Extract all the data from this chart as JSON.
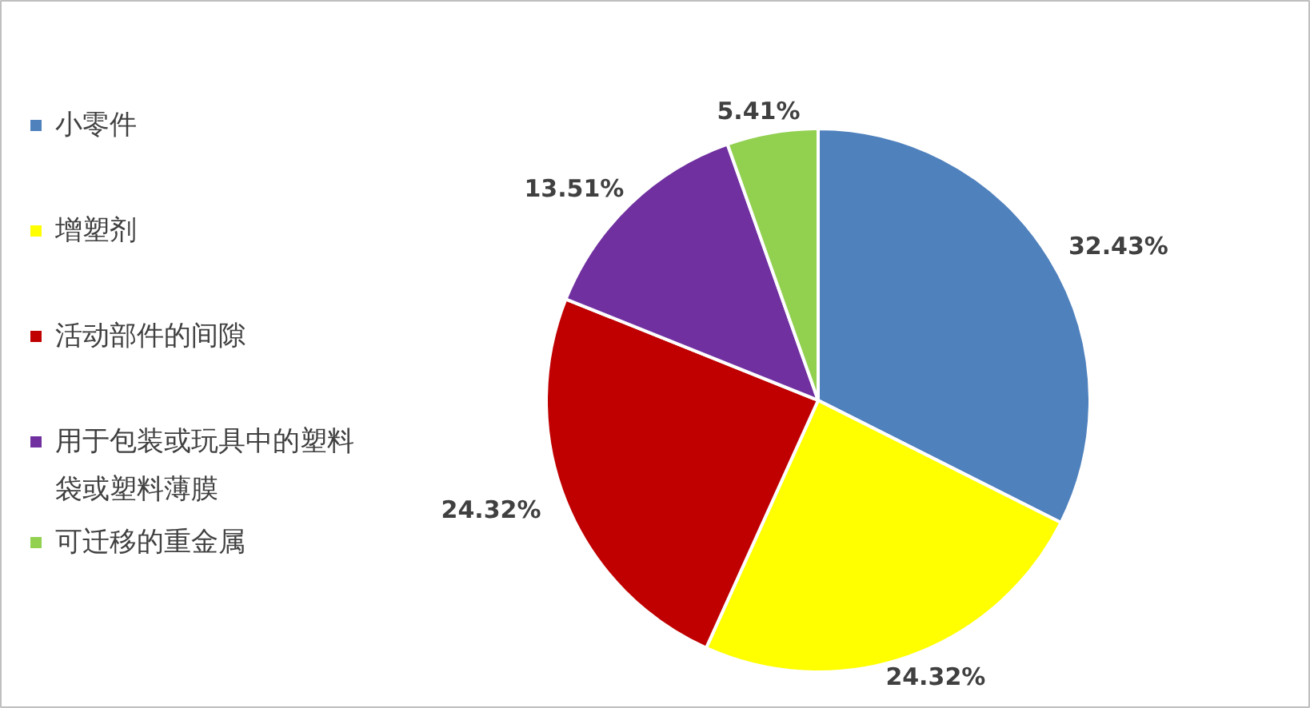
{
  "chart_data": {
    "type": "pie",
    "categories": [
      "小零件",
      "增塑剂",
      "活动部件的间隙",
      "用于包装或玩具中的塑料袋或塑料薄膜",
      "可迁移的重金属"
    ],
    "values": [
      32.43,
      24.32,
      24.32,
      13.51,
      5.41
    ],
    "colors": [
      "#4f81bd",
      "#ffff00",
      "#c00000",
      "#7030a0",
      "#92d050"
    ],
    "value_labels": [
      "32.43%",
      "24.32%",
      "24.32%",
      "13.51%",
      "5.41%"
    ],
    "legend": "left"
  }
}
